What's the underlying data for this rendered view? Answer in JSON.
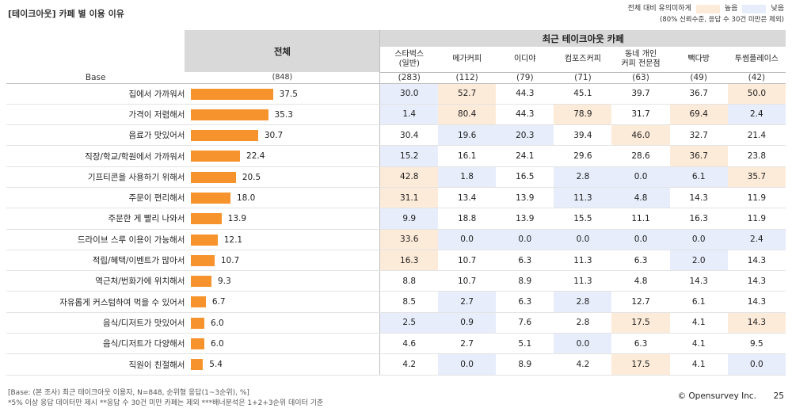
{
  "title": "[테이크아웃] 카페 별 이용 이유",
  "legend": {
    "prefix": "전체 대비 유의미하게",
    "high": "높음",
    "low": "낮음",
    "note": "(80% 신뢰수준, 응답 수 30건 미만은 제외)",
    "high_color": "#fdebd9",
    "low_color": "#e7edfb"
  },
  "header": {
    "total": "전체",
    "group": "최근 테이크아웃 카페",
    "base_label": "Base",
    "total_base": "(848)"
  },
  "cafes": [
    {
      "name": "스타벅스\n(일반)",
      "base": "(283)"
    },
    {
      "name": "메가커피",
      "base": "(112)"
    },
    {
      "name": "이디야",
      "base": "(79)"
    },
    {
      "name": "컴포즈커피",
      "base": "(71)"
    },
    {
      "name": "동네 개인\n커피 전문점",
      "base": "(63)"
    },
    {
      "name": "빽다방",
      "base": "(49)"
    },
    {
      "name": "투썸플레이스",
      "base": "(42)"
    }
  ],
  "rows": [
    {
      "label": "집에서 가까워서",
      "total": "37.5",
      "total_num": 37.5,
      "values": [
        "30.0",
        "52.7",
        "44.3",
        "45.1",
        "39.7",
        "36.7",
        "50.0"
      ],
      "flags": [
        "lo",
        "hi",
        "",
        "",
        "",
        "",
        "hi"
      ]
    },
    {
      "label": "가격이 저렴해서",
      "total": "35.3",
      "total_num": 35.3,
      "values": [
        "1.4",
        "80.4",
        "44.3",
        "78.9",
        "31.7",
        "69.4",
        "2.4"
      ],
      "flags": [
        "lo",
        "hi",
        "",
        "hi",
        "",
        "hi",
        "lo"
      ]
    },
    {
      "label": "음료가 맛있어서",
      "total": "30.7",
      "total_num": 30.7,
      "values": [
        "30.4",
        "19.6",
        "20.3",
        "39.4",
        "46.0",
        "32.7",
        "21.4"
      ],
      "flags": [
        "",
        "lo",
        "lo",
        "",
        "hi",
        "",
        ""
      ]
    },
    {
      "label": "직장/학교/학원에서 가까워서",
      "total": "22.4",
      "total_num": 22.4,
      "values": [
        "15.2",
        "16.1",
        "24.1",
        "29.6",
        "28.6",
        "36.7",
        "23.8"
      ],
      "flags": [
        "lo",
        "",
        "",
        "",
        "",
        "hi",
        ""
      ]
    },
    {
      "label": "기프티콘을 사용하기 위해서",
      "total": "20.5",
      "total_num": 20.5,
      "values": [
        "42.8",
        "1.8",
        "16.5",
        "2.8",
        "0.0",
        "6.1",
        "35.7"
      ],
      "flags": [
        "hi",
        "lo",
        "",
        "lo",
        "lo",
        "lo",
        "hi"
      ]
    },
    {
      "label": "주문이 편리해서",
      "total": "18.0",
      "total_num": 18.0,
      "values": [
        "31.1",
        "13.4",
        "13.9",
        "11.3",
        "4.8",
        "14.3",
        "11.9"
      ],
      "flags": [
        "hi",
        "",
        "",
        "lo",
        "lo",
        "",
        ""
      ]
    },
    {
      "label": "주문한 게 빨리 나와서",
      "total": "13.9",
      "total_num": 13.9,
      "values": [
        "9.9",
        "18.8",
        "13.9",
        "15.5",
        "11.1",
        "16.3",
        "11.9"
      ],
      "flags": [
        "lo",
        "",
        "",
        "",
        "",
        "",
        ""
      ]
    },
    {
      "label": "드라이브 스루 이용이 가능해서",
      "total": "12.1",
      "total_num": 12.1,
      "values": [
        "33.6",
        "0.0",
        "0.0",
        "0.0",
        "0.0",
        "0.0",
        "2.4"
      ],
      "flags": [
        "hi",
        "lo",
        "lo",
        "lo",
        "lo",
        "lo",
        "lo"
      ]
    },
    {
      "label": "적립/혜택/이벤트가 많아서",
      "total": "10.7",
      "total_num": 10.7,
      "values": [
        "16.3",
        "10.7",
        "6.3",
        "11.3",
        "6.3",
        "2.0",
        "14.3"
      ],
      "flags": [
        "hi",
        "",
        "",
        "",
        "",
        "lo",
        ""
      ]
    },
    {
      "label": "역근처/번화가에 위치해서",
      "total": "9.3",
      "total_num": 9.3,
      "values": [
        "8.8",
        "10.7",
        "8.9",
        "11.3",
        "4.8",
        "14.3",
        "14.3"
      ],
      "flags": [
        "",
        "",
        "",
        "",
        "",
        "",
        ""
      ]
    },
    {
      "label": "자유롭게 커스텀하여 먹을 수 있어서",
      "total": "6.7",
      "total_num": 6.7,
      "values": [
        "8.5",
        "2.7",
        "6.3",
        "2.8",
        "12.7",
        "6.1",
        "14.3"
      ],
      "flags": [
        "",
        "lo",
        "",
        "lo",
        "",
        "",
        ""
      ]
    },
    {
      "label": "음식/디저트가 맛있어서",
      "total": "6.0",
      "total_num": 6.0,
      "values": [
        "2.5",
        "0.9",
        "7.6",
        "2.8",
        "17.5",
        "4.1",
        "14.3"
      ],
      "flags": [
        "lo",
        "lo",
        "",
        "",
        "hi",
        "",
        "hi"
      ]
    },
    {
      "label": "음식/디저트가 다양해서",
      "total": "6.0",
      "total_num": 6.0,
      "values": [
        "4.6",
        "2.7",
        "5.1",
        "0.0",
        "6.3",
        "4.1",
        "9.5"
      ],
      "flags": [
        "",
        "",
        "",
        "lo",
        "",
        "",
        ""
      ]
    },
    {
      "label": "직원이 친절해서",
      "total": "5.4",
      "total_num": 5.4,
      "values": [
        "4.2",
        "0.0",
        "8.9",
        "4.2",
        "17.5",
        "4.1",
        "0.0"
      ],
      "flags": [
        "",
        "lo",
        "",
        "",
        "hi",
        "",
        "lo"
      ]
    }
  ],
  "bar_color": "#f7932c",
  "footer": {
    "line1": "[Base: (본 조사) 최근 테이크아웃 이용자, N=848, 순위형 응답(1~3순위), %]",
    "line2": "*5% 이상 응답 데이터만 제시 **응답 수 30건 미만 카페는 제외 ***배너분석은 1+2+3순위 데이터 기준",
    "brand": "© Opensurvey Inc.",
    "page": "25"
  }
}
